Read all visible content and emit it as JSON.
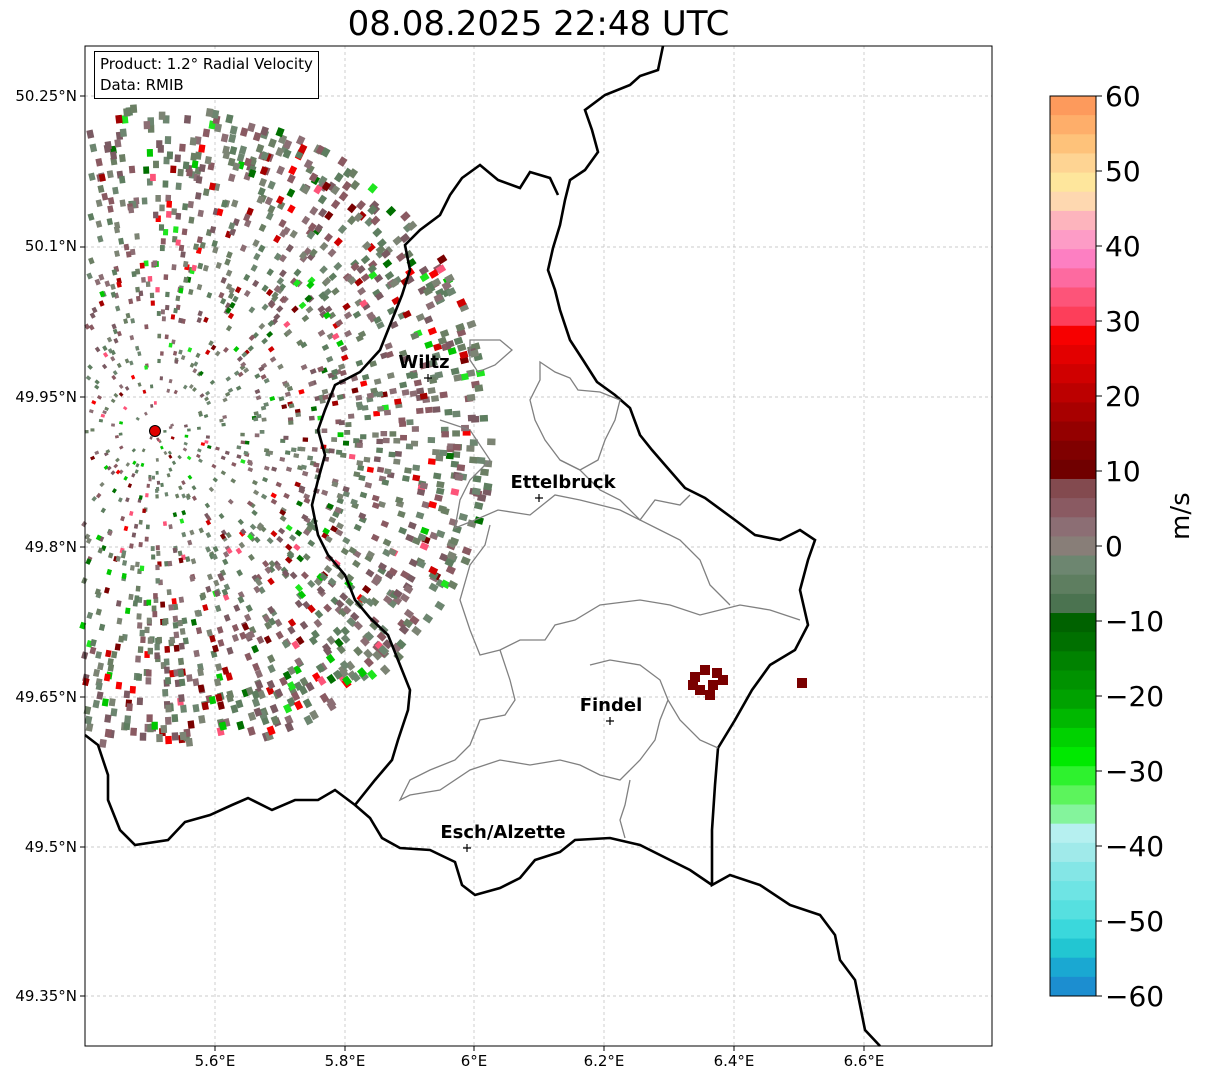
{
  "title": "08.08.2025 22:48 UTC",
  "info": {
    "product": "Product: 1.2° Radial Velocity",
    "data": "Data: RMIB"
  },
  "axes": {
    "lon_ticks": [
      "5.6°E",
      "5.8°E",
      "6°E",
      "6.2°E",
      "6.4°E",
      "6.6°E"
    ],
    "lat_ticks": [
      "50.25°N",
      "50.1°N",
      "49.95°N",
      "49.8°N",
      "49.65°N",
      "49.5°N",
      "49.35°N"
    ]
  },
  "cities": [
    "Wiltz",
    "Ettelbruck",
    "Findel",
    "Esch/Alzette"
  ],
  "colorbar": {
    "label": "m/s",
    "ticks": [
      "60",
      "50",
      "40",
      "30",
      "20",
      "10",
      "0",
      "−10",
      "−20",
      "−30",
      "−40",
      "−50",
      "−60"
    ],
    "colors_top_to_bottom": [
      "#fd9a5c",
      "#feae6a",
      "#fec27a",
      "#fed493",
      "#fee69c",
      "#fed8b0",
      "#fdb4bd",
      "#fd9cc6",
      "#fd7fc2",
      "#fd6aa0",
      "#fd5479",
      "#fd3e5a",
      "#f70000",
      "#e30000",
      "#d00000",
      "#bc0000",
      "#a80000",
      "#940000",
      "#800000",
      "#700000",
      "#834a4f",
      "#8a5a62",
      "#8c6e74",
      "#887e78",
      "#6d8670",
      "#5e7e60",
      "#4b7350",
      "#006200",
      "#007000",
      "#008200",
      "#009200",
      "#00a200",
      "#00b800",
      "#00d200",
      "#00e900",
      "#2ef22e",
      "#5cf45c",
      "#84f49c",
      "#b6f0f0",
      "#a0eaea",
      "#84e6e6",
      "#6ee4e4",
      "#56e0e0",
      "#3ad8dc",
      "#22c6d2",
      "#1aa8d2",
      "#1c8ed0"
    ]
  },
  "radar_site_color": "#e00000"
}
